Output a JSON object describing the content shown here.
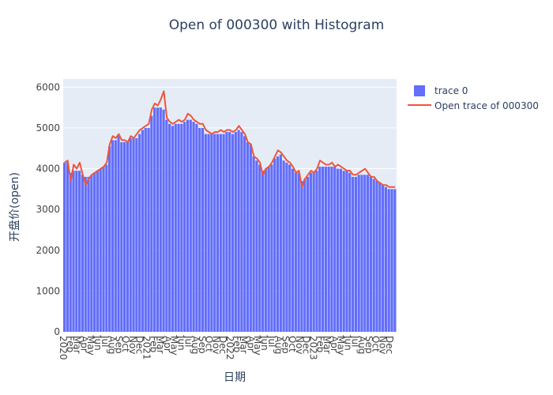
{
  "chart_data": {
    "type": "bar",
    "title": "Open of 000300 with Histogram",
    "xlabel": "日期",
    "ylabel": "开盘价(open)",
    "ylim": [
      0,
      6200
    ],
    "yticks": [
      0,
      1000,
      2000,
      3000,
      4000,
      5000,
      6000
    ],
    "xticks": [
      "2020",
      "Feb",
      "Mar",
      "Apr",
      "May",
      "Jun",
      "Jul",
      "Aug",
      "Sep",
      "Oct",
      "Nov",
      "Dec",
      "2021",
      "Feb",
      "Mar",
      "Apr",
      "May",
      "Jun",
      "Jul",
      "Aug",
      "Sep",
      "Oct",
      "Nov",
      "Dec",
      "2022",
      "Feb",
      "Mar",
      "Apr",
      "May",
      "Jun",
      "Jul",
      "Aug",
      "Sep",
      "Oct",
      "Nov",
      "Dec",
      "2023",
      "Feb",
      "Mar",
      "Apr",
      "May",
      "Jun",
      "Jul",
      "Aug",
      "Sep",
      "Oct",
      "Nov",
      "Dec"
    ],
    "grid": true,
    "legend_position": "top-right",
    "colors": {
      "bar": "#636efa",
      "line": "#ef553b",
      "plot_bg": "#e5ecf6"
    },
    "series": [
      {
        "name": "trace 0",
        "kind": "bar",
        "values": [
          4150,
          4150,
          3900,
          3950,
          3950,
          3950,
          3850,
          3800,
          3800,
          3850,
          3900,
          3950,
          4000,
          4050,
          4100,
          4550,
          4700,
          4700,
          4800,
          4650,
          4650,
          4650,
          4750,
          4750,
          4750,
          4850,
          4950,
          5000,
          5000,
          5300,
          5500,
          5500,
          5500,
          5450,
          5200,
          5100,
          5050,
          5100,
          5100,
          5100,
          5150,
          5200,
          5200,
          5150,
          5100,
          5000,
          5000,
          4850,
          4850,
          4850,
          4850,
          4850,
          4850,
          4850,
          4900,
          4900,
          4850,
          4900,
          4950,
          4900,
          4800,
          4650,
          4600,
          4300,
          4200,
          4100,
          3950,
          4000,
          4050,
          4100,
          4250,
          4300,
          4350,
          4200,
          4150,
          4100,
          4000,
          3900,
          3900,
          3700,
          3750,
          3800,
          3900,
          3900,
          3950,
          4050,
          4050,
          4050,
          4050,
          4050,
          4050,
          4000,
          4000,
          3950,
          3950,
          3900,
          3800,
          3800,
          3850,
          3850,
          3850,
          3850,
          3800,
          3750,
          3700,
          3650,
          3600,
          3550,
          3500,
          3500,
          3500
        ]
      },
      {
        "name": "Open trace of 000300",
        "kind": "line",
        "values": [
          4150,
          4200,
          3700,
          4100,
          4000,
          4150,
          3850,
          3600,
          3750,
          3850,
          3900,
          3950,
          4000,
          4050,
          4150,
          4600,
          4800,
          4750,
          4850,
          4700,
          4700,
          4650,
          4800,
          4750,
          4850,
          4950,
          5000,
          5050,
          5100,
          5450,
          5600,
          5550,
          5700,
          5900,
          5250,
          5150,
          5100,
          5150,
          5200,
          5150,
          5200,
          5350,
          5300,
          5200,
          5150,
          5100,
          5100,
          4950,
          4900,
          4850,
          4900,
          4900,
          4950,
          4900,
          4950,
          4950,
          4900,
          4950,
          5050,
          4950,
          4850,
          4650,
          4600,
          4300,
          4250,
          4150,
          3850,
          4000,
          4050,
          4150,
          4300,
          4450,
          4400,
          4300,
          4200,
          4150,
          4050,
          3900,
          3950,
          3550,
          3750,
          3850,
          3950,
          3900,
          4000,
          4200,
          4150,
          4100,
          4100,
          4150,
          4050,
          4100,
          4050,
          4000,
          3950,
          3950,
          3850,
          3850,
          3900,
          3950,
          4000,
          3900,
          3800,
          3800,
          3700,
          3650,
          3600,
          3600,
          3550,
          3550,
          3550
        ]
      }
    ]
  }
}
